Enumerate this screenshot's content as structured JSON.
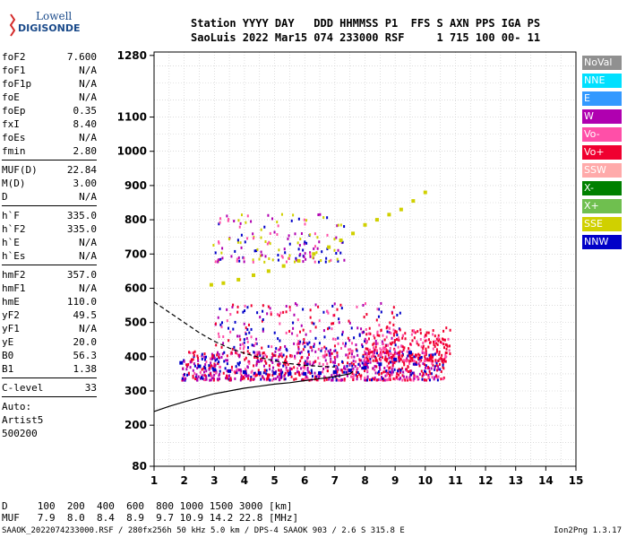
{
  "logo": {
    "line1": "Lowell",
    "line2": "DIGISONDE"
  },
  "header": {
    "line1": "Station YYYY DAY   DDD HHMMSS P1  FFS S AXN PPS IGA PS",
    "line2": "SaoLuis 2022 Mar15 074 233000 RSF     1 715 100 00- 11"
  },
  "params": {
    "g1": [
      {
        "label": "foF2",
        "value": "7.600"
      },
      {
        "label": "foF1",
        "value": "N/A"
      },
      {
        "label": "foF1p",
        "value": "N/A"
      },
      {
        "label": "foE",
        "value": "N/A"
      },
      {
        "label": "foEp",
        "value": "0.35"
      },
      {
        "label": "fxI",
        "value": "8.40"
      },
      {
        "label": "foEs",
        "value": "N/A"
      },
      {
        "label": "fmin",
        "value": "2.80"
      }
    ],
    "g2": [
      {
        "label": "MUF(D)",
        "value": "22.84"
      },
      {
        "label": "M(D)",
        "value": "3.00"
      },
      {
        "label": "D",
        "value": "N/A"
      }
    ],
    "g3": [
      {
        "label": "h`F",
        "value": "335.0"
      },
      {
        "label": "h`F2",
        "value": "335.0"
      },
      {
        "label": "h`E",
        "value": "N/A"
      },
      {
        "label": "h`Es",
        "value": "N/A"
      }
    ],
    "g4": [
      {
        "label": "hmF2",
        "value": "357.0"
      },
      {
        "label": "hmF1",
        "value": "N/A"
      },
      {
        "label": "hmE",
        "value": "110.0"
      },
      {
        "label": "yF2",
        "value": "49.5"
      },
      {
        "label": "yF1",
        "value": "N/A"
      },
      {
        "label": "yE",
        "value": "20.0"
      },
      {
        "label": "B0",
        "value": "56.3"
      },
      {
        "label": "B1",
        "value": "1.38"
      }
    ],
    "g5": [
      {
        "label": "C-level",
        "value": "33"
      }
    ],
    "auto": [
      "Auto:",
      "Artist5",
      "500200"
    ]
  },
  "legend": [
    {
      "label": "NoVal",
      "color": "#909090"
    },
    {
      "label": "NNE",
      "color": "#00e0ff"
    },
    {
      "label": "E",
      "color": "#3399ff"
    },
    {
      "label": "W",
      "color": "#b000b0"
    },
    {
      "label": "Vo-",
      "color": "#ff4fa8"
    },
    {
      "label": "Vo+",
      "color": "#f00030"
    },
    {
      "label": "SSW",
      "color": "#ffaaaa"
    },
    {
      "label": "X-",
      "color": "#008000"
    },
    {
      "label": "X+",
      "color": "#6fbf4f"
    },
    {
      "label": "SSE",
      "color": "#d0d000"
    },
    {
      "label": "NNW",
      "color": "#0000c8"
    }
  ],
  "footer": {
    "line1": "D     100  200  400  600  800 1000 1500 3000 [km]",
    "line2": "MUF   7.9  8.0  8.4  8.9  9.7 10.9 14.2 22.8 [MHz]",
    "line3": "SAAOK_2022074233000.RSF / 280fx256h 50 kHz 5.0 km / DPS-4 SAAOK 903 / 2.6 S 315.8 E",
    "version": "Ion2Png 1.3.17"
  },
  "chart_data": {
    "type": "scatter",
    "xlim": [
      1,
      15
    ],
    "ylim": [
      80,
      1290
    ],
    "xticks": [
      1,
      2,
      3,
      4,
      5,
      6,
      7,
      8,
      9,
      10,
      11,
      12,
      13,
      14,
      15
    ],
    "yticks": [
      80,
      200,
      300,
      400,
      500,
      600,
      700,
      800,
      900,
      1000,
      1100,
      1280
    ],
    "grid": true,
    "legend_position": "right",
    "series": [
      {
        "color_key": "SSE",
        "trace": "F2 second hop",
        "points": [
          [
            2.9,
            610
          ],
          [
            3.3,
            615
          ],
          [
            3.8,
            625
          ],
          [
            4.3,
            638
          ],
          [
            4.8,
            650
          ],
          [
            5.3,
            665
          ],
          [
            5.8,
            680
          ],
          [
            6.3,
            700
          ],
          [
            6.8,
            720
          ],
          [
            7.2,
            740
          ],
          [
            7.6,
            760
          ],
          [
            8.0,
            785
          ],
          [
            8.4,
            800
          ],
          [
            8.8,
            815
          ],
          [
            9.2,
            830
          ],
          [
            9.6,
            855
          ],
          [
            10.0,
            880
          ]
        ]
      },
      {
        "color_key": "NNW",
        "trace": "F layer echo",
        "points": [
          [
            1.9,
            382
          ],
          [
            2.5,
            372
          ],
          [
            3.0,
            362
          ],
          [
            3.5,
            358
          ],
          [
            4.0,
            355
          ],
          [
            4.5,
            352
          ],
          [
            5.0,
            352
          ],
          [
            5.5,
            350
          ],
          [
            6.0,
            350
          ],
          [
            6.5,
            352
          ],
          [
            7.0,
            355
          ],
          [
            7.5,
            360
          ],
          [
            8.0,
            368
          ],
          [
            8.5,
            378
          ],
          [
            9.0,
            392
          ],
          [
            9.5,
            412
          ]
        ]
      }
    ],
    "profile_curve": [
      [
        1.0,
        240
      ],
      [
        1.5,
        255
      ],
      [
        2.0,
        268
      ],
      [
        2.5,
        280
      ],
      [
        3.0,
        292
      ],
      [
        3.5,
        300
      ],
      [
        4.0,
        308
      ],
      [
        4.5,
        314
      ],
      [
        5.0,
        320
      ],
      [
        5.5,
        324
      ],
      [
        6.0,
        330
      ],
      [
        6.5,
        336
      ],
      [
        7.0,
        342
      ],
      [
        7.5,
        350
      ],
      [
        7.6,
        357
      ]
    ],
    "dashed_curve": [
      [
        1.0,
        560
      ],
      [
        1.5,
        530
      ],
      [
        2.0,
        500
      ],
      [
        2.5,
        470
      ],
      [
        3.0,
        445
      ],
      [
        3.5,
        425
      ],
      [
        4.0,
        410
      ],
      [
        4.5,
        398
      ],
      [
        5.0,
        388
      ],
      [
        5.5,
        380
      ],
      [
        6.0,
        375
      ],
      [
        6.5,
        372
      ],
      [
        7.0,
        370
      ]
    ]
  }
}
